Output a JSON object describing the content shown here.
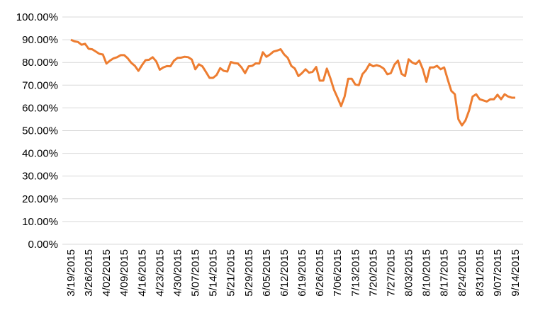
{
  "chart_data": {
    "type": "line",
    "categories": [
      "3/19/2015",
      null,
      null,
      null,
      null,
      "3/26/2015",
      null,
      null,
      null,
      null,
      "4/02/2015",
      null,
      null,
      null,
      null,
      "4/09/2015",
      null,
      null,
      null,
      null,
      "4/16/2015",
      null,
      null,
      null,
      null,
      "4/23/2015",
      null,
      null,
      null,
      null,
      "4/30/2015",
      null,
      null,
      null,
      null,
      "5/07/2015",
      null,
      null,
      null,
      null,
      "5/14/2015",
      null,
      null,
      null,
      null,
      "5/21/2015",
      null,
      null,
      null,
      null,
      "5/29/2015",
      null,
      null,
      null,
      null,
      "6/05/2015",
      null,
      null,
      null,
      null,
      "6/12/2015",
      null,
      null,
      null,
      null,
      "6/19/2015",
      null,
      null,
      null,
      null,
      "6/26/2015",
      null,
      null,
      null,
      null,
      "7/06/2015",
      null,
      null,
      null,
      null,
      "7/13/2015",
      null,
      null,
      null,
      null,
      "7/20/2015",
      null,
      null,
      null,
      null,
      "7/27/2015",
      null,
      null,
      null,
      null,
      "8/03/2015",
      null,
      null,
      null,
      null,
      "8/10/2015",
      null,
      null,
      null,
      null,
      "8/17/2015",
      null,
      null,
      null,
      null,
      "8/24/2015",
      null,
      null,
      null,
      null,
      "8/31/2015",
      null,
      null,
      null,
      null,
      "9/07/2015",
      null,
      null,
      null,
      null,
      "9/14/2015"
    ],
    "series": [
      {
        "color": "#ED7D31",
        "values": [
          90.0,
          89.3,
          89.0,
          87.8,
          88.2,
          86.0,
          85.8,
          84.8,
          83.8,
          83.5,
          79.5,
          80.8,
          81.8,
          82.3,
          83.2,
          83.2,
          81.8,
          79.8,
          78.5,
          76.3,
          78.8,
          81.0,
          81.2,
          82.3,
          80.5,
          76.8,
          77.8,
          78.4,
          78.3,
          80.8,
          82.0,
          82.1,
          82.5,
          82.3,
          81.3,
          77.0,
          79.2,
          78.3,
          75.8,
          73.2,
          73.2,
          74.5,
          77.5,
          76.3,
          76.0,
          80.2,
          79.7,
          79.5,
          77.8,
          75.3,
          78.3,
          78.5,
          79.6,
          79.5,
          84.5,
          82.5,
          83.5,
          84.8,
          85.2,
          85.8,
          83.5,
          82.0,
          78.5,
          77.3,
          74.0,
          75.3,
          77.0,
          75.5,
          75.9,
          78.0,
          72.0,
          72.0,
          77.3,
          73.0,
          68.0,
          64.5,
          60.8,
          65.0,
          72.8,
          72.8,
          70.3,
          70.0,
          74.8,
          76.6,
          79.3,
          78.3,
          78.8,
          78.3,
          77.3,
          74.8,
          75.3,
          79.0,
          80.8,
          75.0,
          74.0,
          81.4,
          80.0,
          79.3,
          80.8,
          77.0,
          71.5,
          77.8,
          77.8,
          78.5,
          77.0,
          77.8,
          72.5,
          67.5,
          66.0,
          55.0,
          52.3,
          54.5,
          58.8,
          65.0,
          66.0,
          63.8,
          63.3,
          62.8,
          63.8,
          63.8,
          65.8,
          63.8,
          66.0,
          65.0,
          64.5,
          64.5
        ]
      }
    ],
    "ylim": [
      0,
      100
    ],
    "yticks": [
      {
        "value": 0,
        "label": "0.00%"
      },
      {
        "value": 10,
        "label": "10.00%"
      },
      {
        "value": 20,
        "label": "20.00%"
      },
      {
        "value": 30,
        "label": "30.00%"
      },
      {
        "value": 40,
        "label": "40.00%"
      },
      {
        "value": 50,
        "label": "50.00%"
      },
      {
        "value": 60,
        "label": "60.00%"
      },
      {
        "value": 70,
        "label": "70.00%"
      },
      {
        "value": 80,
        "label": "80.00%"
      },
      {
        "value": 90,
        "label": "90.00%"
      },
      {
        "value": 100,
        "label": "100.00%"
      }
    ],
    "grid": true
  }
}
